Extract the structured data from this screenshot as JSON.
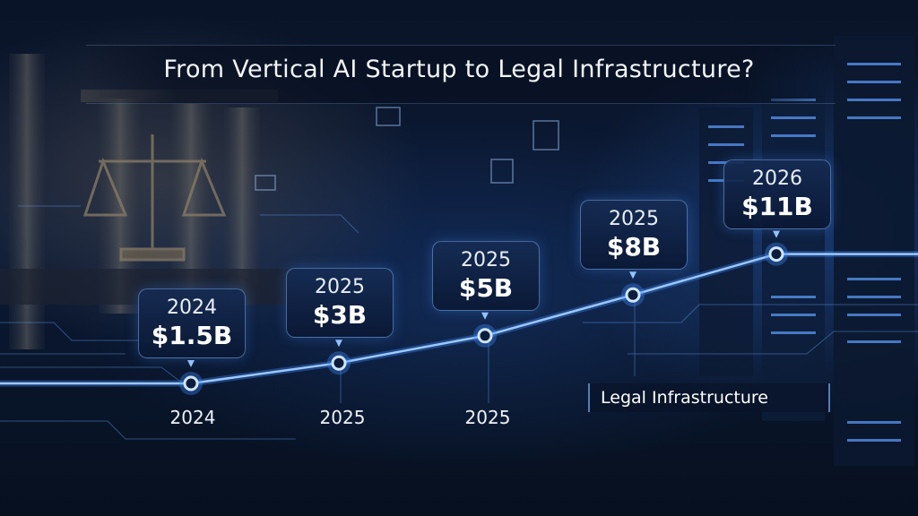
{
  "chart_data": {
    "type": "line",
    "title": "From Vertical AI Startup to Legal Infrastructure?",
    "points": [
      {
        "callout_year": "2024",
        "label": "$1.5B",
        "value": 1.5
      },
      {
        "callout_year": "2025",
        "label": "$3B",
        "value": 3
      },
      {
        "callout_year": "2025",
        "label": "$5B",
        "value": 5
      },
      {
        "callout_year": "2025",
        "label": "$8B",
        "value": 8
      },
      {
        "callout_year": "2026",
        "label": "$11B",
        "value": 11
      }
    ],
    "x_tick_labels": [
      "2024",
      "2025",
      "2025"
    ],
    "annotation": "Legal Infrastructure",
    "colors": {
      "line": "#9cc8ff",
      "marker": "#cfe6ff",
      "glow": "#3f8cff"
    }
  }
}
